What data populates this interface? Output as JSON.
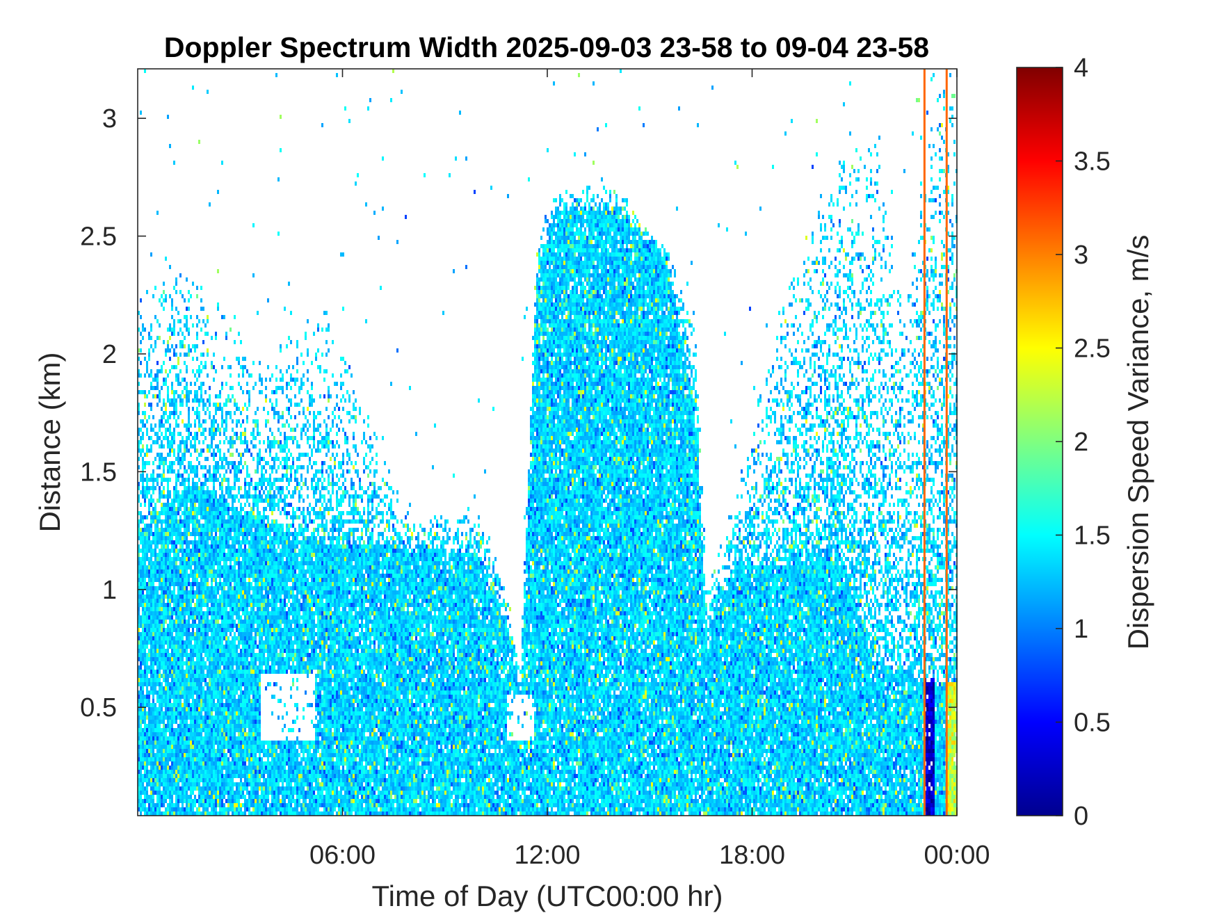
{
  "chart_data": {
    "type": "heatmap",
    "title": "Doppler Spectrum Width 2025-09-03 23-58 to 09-04 23-58",
    "xlabel": "Time of Day (UTC00:00 hr)",
    "ylabel": "Distance (km)",
    "colorbar_label": "Dispersion Speed Variance, m/s",
    "x_range_hours": [
      0,
      24
    ],
    "x_ticks": [
      {
        "hour": 6,
        "label": "06:00"
      },
      {
        "hour": 12,
        "label": "12:00"
      },
      {
        "hour": 18,
        "label": "18:00"
      },
      {
        "hour": 24,
        "label": "00:00"
      }
    ],
    "y_range_km": [
      0.04,
      3.21
    ],
    "y_ticks": [
      {
        "value": 0.5,
        "label": "0.5"
      },
      {
        "value": 1,
        "label": "1"
      },
      {
        "value": 1.5,
        "label": "1.5"
      },
      {
        "value": 2,
        "label": "2"
      },
      {
        "value": 2.5,
        "label": "2.5"
      },
      {
        "value": 3,
        "label": "3"
      }
    ],
    "colorbar_range": [
      0,
      4
    ],
    "colorbar_ticks": [
      {
        "value": 0,
        "label": "0"
      },
      {
        "value": 0.5,
        "label": "0.5"
      },
      {
        "value": 1,
        "label": "1"
      },
      {
        "value": 1.5,
        "label": "1.5"
      },
      {
        "value": 2,
        "label": "2"
      },
      {
        "value": 2.5,
        "label": "2.5"
      },
      {
        "value": 3,
        "label": "3"
      },
      {
        "value": 3.5,
        "label": "3.5"
      },
      {
        "value": 4,
        "label": "4"
      }
    ],
    "colormap": "jet",
    "typical_value": 1.35,
    "signal_top_profile": [
      {
        "hour": 0.0,
        "main_top_km": 1.25,
        "scatter_top_km": 2.3
      },
      {
        "hour": 1.5,
        "main_top_km": 1.45,
        "scatter_top_km": 2.35
      },
      {
        "hour": 3.5,
        "main_top_km": 1.3,
        "scatter_top_km": 2.0
      },
      {
        "hour": 5.5,
        "main_top_km": 1.2,
        "scatter_top_km": 2.2
      },
      {
        "hour": 8.0,
        "main_top_km": 1.18,
        "scatter_top_km": 1.3
      },
      {
        "hour": 10.0,
        "main_top_km": 1.15,
        "scatter_top_km": 1.35
      },
      {
        "hour": 10.8,
        "main_top_km": 0.85,
        "scatter_top_km": 1.0
      },
      {
        "hour": 11.2,
        "main_top_km": 0.55,
        "scatter_top_km": 0.7
      },
      {
        "hour": 11.7,
        "main_top_km": 2.3,
        "scatter_top_km": 2.5
      },
      {
        "hour": 12.2,
        "main_top_km": 2.6,
        "scatter_top_km": 2.7
      },
      {
        "hour": 14.0,
        "main_top_km": 2.62,
        "scatter_top_km": 2.72
      },
      {
        "hour": 15.5,
        "main_top_km": 2.4,
        "scatter_top_km": 2.45
      },
      {
        "hour": 16.3,
        "main_top_km": 1.8,
        "scatter_top_km": 2.2
      },
      {
        "hour": 16.7,
        "main_top_km": 0.8,
        "scatter_top_km": 1.0
      },
      {
        "hour": 17.5,
        "main_top_km": 1.1,
        "scatter_top_km": 1.4
      },
      {
        "hour": 19.0,
        "main_top_km": 1.1,
        "scatter_top_km": 2.3
      },
      {
        "hour": 20.5,
        "main_top_km": 1.2,
        "scatter_top_km": 2.8
      },
      {
        "hour": 21.5,
        "main_top_km": 0.7,
        "scatter_top_km": 3.0
      },
      {
        "hour": 22.5,
        "main_top_km": 0.65,
        "scatter_top_km": 2.2
      },
      {
        "hour": 23.2,
        "main_top_km": 0.6,
        "scatter_top_km": 3.21
      },
      {
        "hour": 24.0,
        "main_top_km": 0.6,
        "scatter_top_km": 3.21
      }
    ],
    "clear_pockets": [
      {
        "hour_from": 3.6,
        "hour_to": 5.2,
        "km_from": 0.35,
        "km_to": 0.65
      },
      {
        "hour_from": 10.8,
        "hour_to": 11.6,
        "km_from": 0.35,
        "km_to": 0.55
      }
    ],
    "vertical_lines": [
      {
        "hour": 23.05,
        "value": 3.1
      },
      {
        "hour": 23.7,
        "value": 3.1
      }
    ],
    "low_value_column": {
      "hour_from": 23.05,
      "hour_to": 23.35,
      "value": 0.3
    },
    "high_value_band": {
      "hour_from": 23.7,
      "hour_to": 24.0,
      "km_from": 0.04,
      "km_to": 0.6,
      "value": 2.3
    }
  }
}
